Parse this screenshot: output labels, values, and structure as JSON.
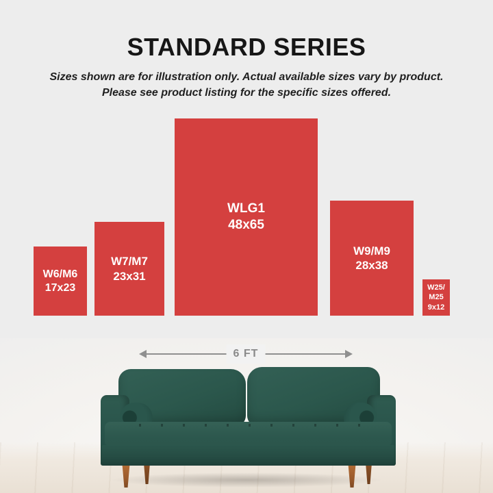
{
  "header": {
    "title": "STANDARD SERIES",
    "subtitle_line1": "Sizes shown are for illustration only. Actual available sizes vary by product.",
    "subtitle_line2": "Please see product listing for the specific sizes offered."
  },
  "sizes": {
    "items": [
      {
        "label": "W6/M6",
        "dims": "17x23"
      },
      {
        "label": "W7/M7",
        "dims": "23x31"
      },
      {
        "label": "WLG1",
        "dims": "48x65"
      },
      {
        "label": "W9/M9",
        "dims": "28x38"
      },
      {
        "label": "W25/",
        "label2": "M25",
        "dims": "9x12"
      }
    ]
  },
  "scale": {
    "label": "6 FT"
  },
  "colors": {
    "accent_red": "#d4403f",
    "background": "#ededed",
    "arrow_gray": "#8f8f8f",
    "sofa_teal": "#2b564c",
    "leg_wood": "#9a5a2b"
  }
}
